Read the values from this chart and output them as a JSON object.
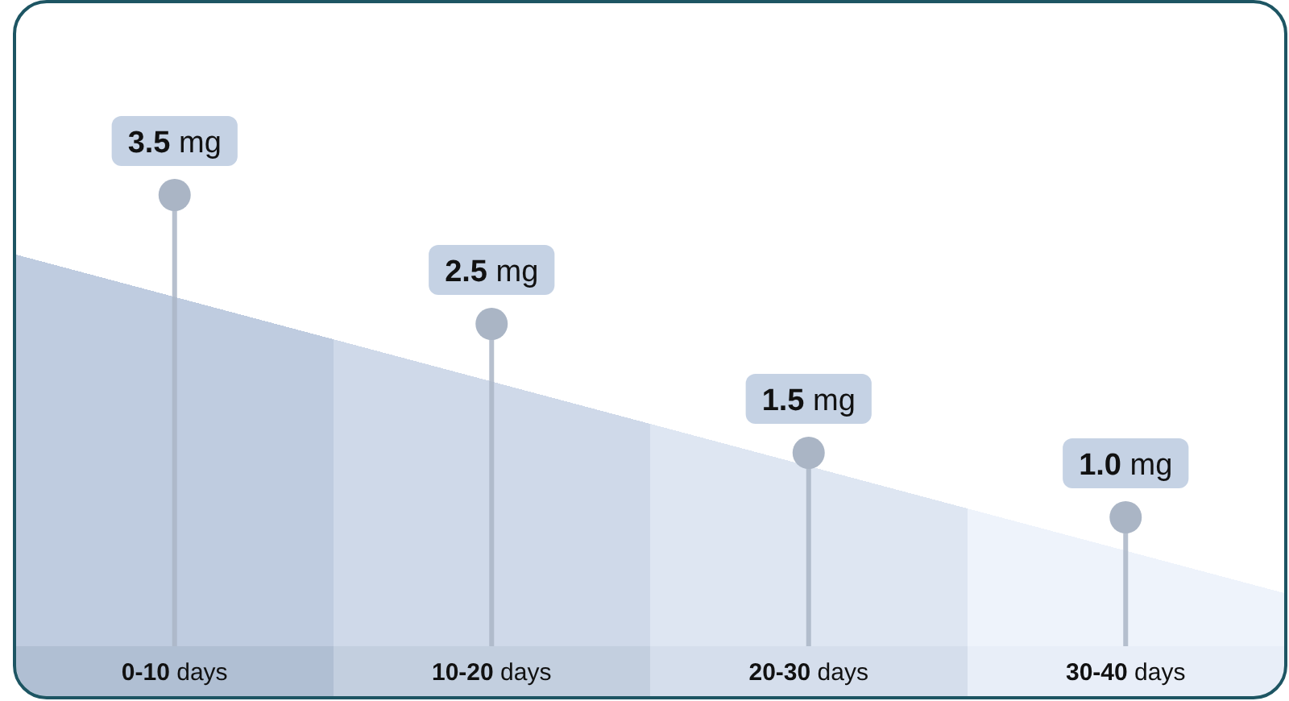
{
  "chart_data": {
    "type": "lollipop",
    "categories": [
      "0-10 days",
      "10-20 days",
      "20-30 days",
      "30-40 days"
    ],
    "values": [
      3.5,
      2.5,
      1.5,
      1.0
    ],
    "value_labels": [
      "3.5 mg",
      "2.5 mg",
      "1.5 mg",
      "1.0 mg"
    ],
    "color": "#aab5c5"
  }
}
